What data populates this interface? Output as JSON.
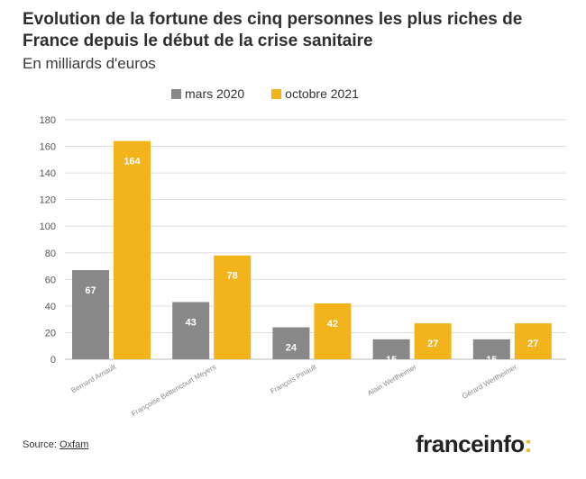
{
  "title": "Evolution de la fortune des cinq personnes les plus riches de France depuis le début de la crise sanitaire",
  "subtitle": "En milliards d'euros",
  "source_label": "Source: ",
  "source_link": "Oxfam",
  "logo": {
    "text": "franceinfo",
    "suffix": ":"
  },
  "colors": {
    "mars": "#888888",
    "octobre": "#F2B31B",
    "grid": "#dddddd"
  },
  "chart_data": {
    "type": "bar",
    "categories": [
      "Bernard Arnault",
      "Françoise Bettencourt Meyers",
      "François Pinault",
      "Alain Wertheimer",
      "Gérard Wertheimer"
    ],
    "series": [
      {
        "name": "mars 2020",
        "values": [
          67,
          43,
          24,
          15,
          15
        ]
      },
      {
        "name": "octobre 2021",
        "values": [
          164,
          78,
          42,
          27,
          27
        ]
      }
    ],
    "ylim": [
      0,
      180
    ],
    "yticks": [
      0,
      20,
      40,
      60,
      80,
      100,
      120,
      140,
      160,
      180
    ],
    "grid": true,
    "legend": "top",
    "data_labels": true
  }
}
